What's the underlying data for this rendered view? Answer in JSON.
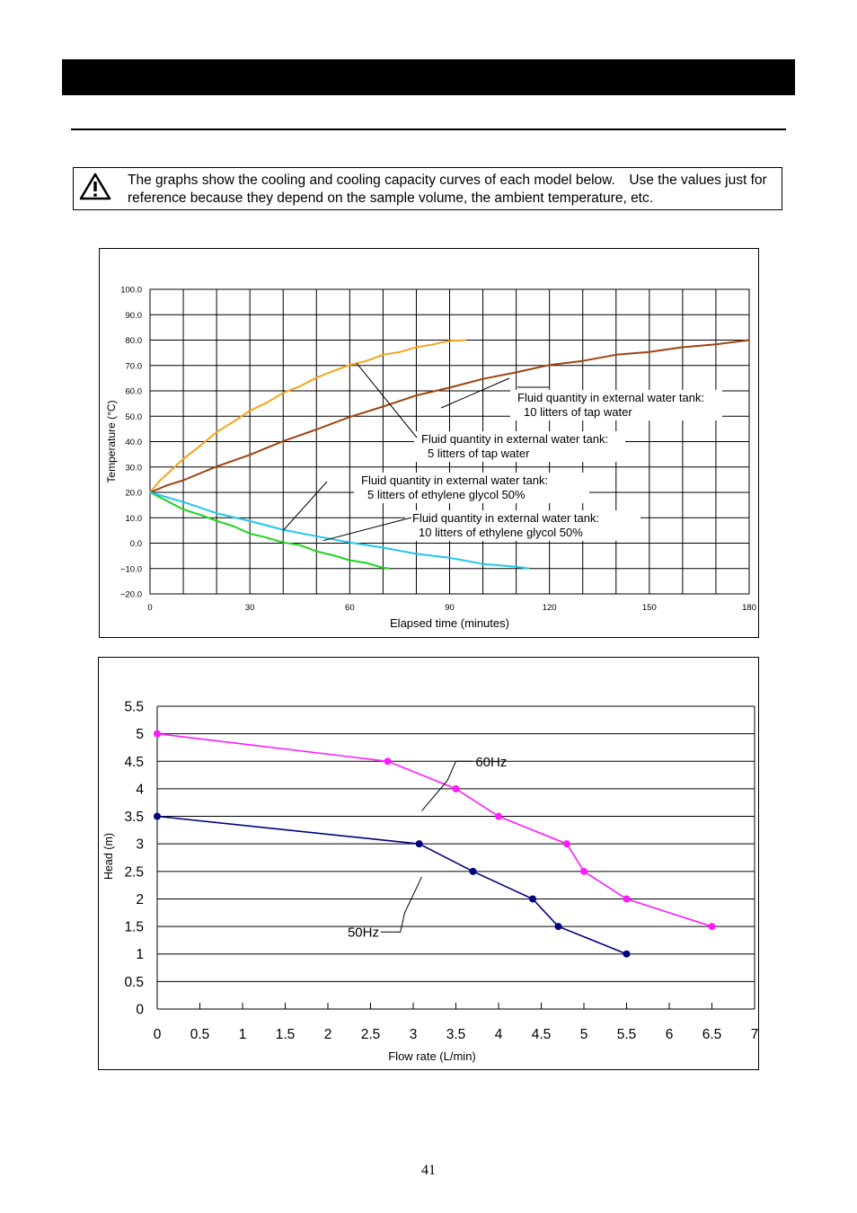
{
  "caution": {
    "text": "The graphs show the cooling and cooling capacity curves of each model below.　Use the values just for reference because they depend on the sample volume, the ambient temperature, etc."
  },
  "page_number": "41",
  "chart_data": [
    {
      "type": "line",
      "title": "",
      "xlabel": "Elapsed time (minutes)",
      "ylabel": "Temperature (°C)",
      "xlim": [
        0,
        180
      ],
      "ylim": [
        -20,
        100
      ],
      "x_ticks": [
        "0",
        "30",
        "60",
        "90",
        "120",
        "150",
        "180"
      ],
      "y_ticks": [
        "100.0",
        "90.0",
        "80.0",
        "70.0",
        "60.0",
        "50.0",
        "40.0",
        "30.0",
        "20.0",
        "10.0",
        "0.0",
        "−10.0",
        "−20.0"
      ],
      "grid": true,
      "series": [
        {
          "name": "Fluid quantity in external water tank: 5 litters of tap water",
          "label_lines": [
            "Fluid quantity in external water tank:",
            "5 litters of tap water"
          ],
          "color": "#f7a21b",
          "x": [
            0,
            3,
            6,
            10,
            15,
            20,
            25,
            30,
            35,
            40,
            45,
            50,
            55,
            60,
            65,
            70,
            75,
            80,
            85,
            90,
            95
          ],
          "y": [
            20,
            24.5,
            28.5,
            33,
            38.5,
            43.5,
            48,
            52,
            55.5,
            59,
            62,
            65,
            68,
            70,
            72,
            74,
            75.5,
            77,
            78.5,
            79.5,
            80
          ]
        },
        {
          "name": "Fluid quantity in external water tank: 10 litters of tap water",
          "label_lines": [
            "Fluid quantity in external water tank:",
            "10 litters of tap water"
          ],
          "color": "#a0420f",
          "x": [
            0,
            5,
            10,
            20,
            30,
            40,
            50,
            60,
            70,
            80,
            90,
            100,
            110,
            120,
            130,
            140,
            150,
            160,
            170,
            180
          ],
          "y": [
            20,
            22.5,
            25,
            30,
            35,
            40,
            45,
            49.5,
            54,
            58,
            61.5,
            64.5,
            67.5,
            70,
            72,
            74,
            75.5,
            77,
            78.5,
            80
          ]
        },
        {
          "name": "Fluid quantity in external water tank: 5 litters of ethylene glycol 50%",
          "label_lines": [
            "Fluid quantity in external water tank:",
            "5 litters of ethylene glycol 50%"
          ],
          "color": "#1fd41f",
          "x": [
            0,
            5,
            10,
            15,
            20,
            25,
            30,
            35,
            40,
            45,
            50,
            55,
            60,
            65,
            70,
            72
          ],
          "y": [
            20,
            16.5,
            13.5,
            11,
            9,
            6.5,
            4,
            2,
            0.5,
            -1,
            -3,
            -5,
            -6.5,
            -8,
            -9.5,
            -10
          ]
        },
        {
          "name": "Fluid quantity in external water tank: 10 litters of ethylene glycol 50%",
          "label_lines": [
            "Fluid quantity in external water tank:",
            "10 litters of ethylene glycol 50%"
          ],
          "color": "#21c6ee",
          "x": [
            0,
            10,
            20,
            30,
            40,
            50,
            60,
            70,
            80,
            90,
            100,
            110,
            114
          ],
          "y": [
            20,
            16,
            12,
            8.5,
            5.5,
            2.5,
            0.5,
            -2,
            -4,
            -6,
            -8,
            -9.5,
            -10
          ]
        }
      ]
    },
    {
      "type": "line",
      "title": "",
      "xlabel": "Flow rate (L/min)",
      "ylabel": "Head (m)",
      "xlim": [
        0,
        7
      ],
      "ylim": [
        0,
        5.5
      ],
      "x_ticks": [
        "0",
        "0.5",
        "1",
        "1.5",
        "2",
        "2.5",
        "3",
        "3.5",
        "4",
        "4.5",
        "5",
        "5.5",
        "6",
        "6.5",
        "7"
      ],
      "y_ticks": [
        "5.5",
        "5",
        "4.5",
        "4",
        "3.5",
        "3",
        "2.5",
        "2",
        "1.5",
        "1",
        "0.5",
        "0"
      ],
      "grid": true,
      "series": [
        {
          "name": "60Hz",
          "color": "#ff1aff",
          "x": [
            0,
            2.7,
            3.5,
            4.0,
            4.8,
            5.0,
            5.5,
            6.5
          ],
          "y": [
            5.0,
            4.5,
            4.0,
            3.5,
            3.0,
            2.5,
            2.0,
            1.5
          ]
        },
        {
          "name": "50Hz",
          "color": "#000080",
          "x": [
            0,
            3.07,
            3.7,
            4.4,
            4.7,
            5.5
          ],
          "y": [
            3.5,
            3.0,
            2.5,
            2.0,
            1.5,
            1.0
          ]
        }
      ]
    }
  ]
}
